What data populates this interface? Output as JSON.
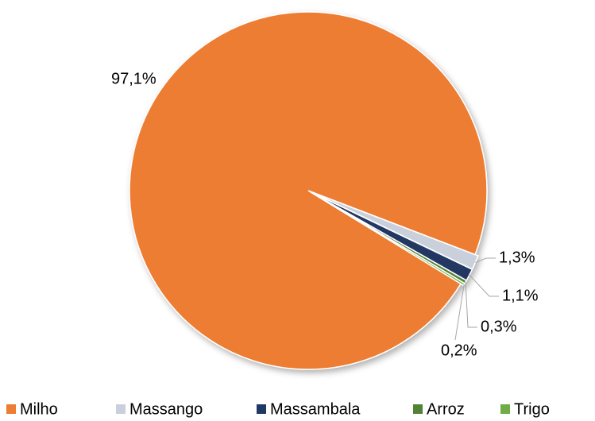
{
  "chart_data": {
    "type": "pie",
    "categories": [
      "Milho",
      "Massango",
      "Massambala",
      "Arroz",
      "Trigo"
    ],
    "values": [
      97.1,
      1.3,
      1.1,
      0.3,
      0.2
    ],
    "value_labels": [
      "97,1%",
      "1,3%",
      "1,1%",
      "0,3%",
      "0,2%"
    ],
    "colors": [
      "#ED7D31",
      "#C9D0DB",
      "#203864",
      "#548235",
      "#70AD47"
    ],
    "legend": "bottom"
  }
}
